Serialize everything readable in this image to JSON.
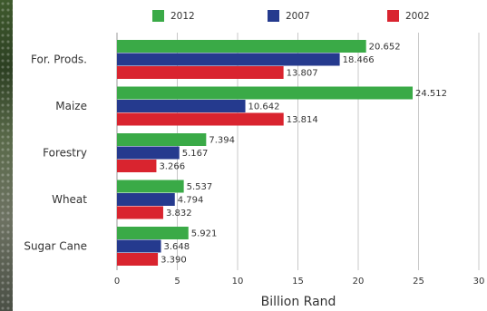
{
  "chart_data": {
    "type": "bar",
    "orientation": "horizontal",
    "title": "",
    "xlabel": "Billion Rand",
    "ylabel": "",
    "xlim": [
      0,
      30
    ],
    "xticks": [
      "0",
      "5",
      "10",
      "15",
      "20",
      "25",
      "30"
    ],
    "grid": true,
    "legend_position": "top",
    "categories": [
      "For. Prods.",
      "Maize",
      "Forestry",
      "Wheat",
      "Sugar Cane"
    ],
    "series": [
      {
        "name": "2012",
        "color": "#3aaa47",
        "values": [
          20.652,
          24.512,
          7.394,
          5.537,
          5.921
        ],
        "labels": [
          "20.652",
          "24.512",
          "7.394",
          "5.537",
          "5.921"
        ]
      },
      {
        "name": "2007",
        "color": "#253a8e",
        "values": [
          18.466,
          10.642,
          5.167,
          4.794,
          3.648
        ],
        "labels": [
          "18.466",
          "10.642",
          "5.167",
          "4.794",
          "3.648"
        ]
      },
      {
        "name": "2002",
        "color": "#d9242f",
        "values": [
          13.807,
          13.814,
          3.266,
          3.832,
          3.39
        ],
        "labels": [
          "13.807",
          "13.814",
          "3.266",
          "3.832",
          "3.390"
        ]
      }
    ]
  }
}
